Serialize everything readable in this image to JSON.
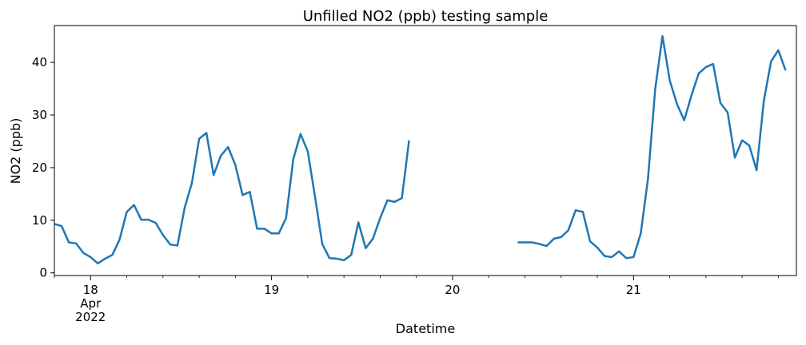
{
  "chart_data": {
    "type": "line",
    "title": "Unfilled NO2 (ppb) testing sample",
    "xlabel": "Datetime",
    "ylabel": "NO2 (ppb)",
    "x_unit": "hours",
    "xlim": [
      -2,
      39
    ],
    "ylim": [
      -0.5,
      47
    ],
    "grid": false,
    "line_color": "#1f77b4",
    "yticks": [
      0,
      10,
      20,
      30,
      40
    ],
    "xticks": [
      {
        "x": 0,
        "label": "18",
        "label2": "Apr",
        "label3": "2022"
      },
      {
        "x": 10,
        "label": "19"
      },
      {
        "x": 20,
        "label": "20"
      },
      {
        "x": 30,
        "label": "21"
      }
    ],
    "series": [
      {
        "values": [
          [
            -2.0,
            9.3
          ],
          [
            -1.6,
            8.9
          ],
          [
            -1.2,
            5.8
          ],
          [
            -0.8,
            5.6
          ],
          [
            -0.4,
            3.8
          ],
          [
            0.0,
            3.0
          ],
          [
            0.4,
            1.8
          ],
          [
            0.8,
            2.7
          ],
          [
            1.2,
            3.4
          ],
          [
            1.6,
            6.3
          ],
          [
            2.0,
            11.6
          ],
          [
            2.4,
            12.9
          ],
          [
            2.8,
            10.1
          ],
          [
            3.2,
            10.1
          ],
          [
            3.6,
            9.5
          ],
          [
            4.0,
            7.2
          ],
          [
            4.4,
            5.4
          ],
          [
            4.8,
            5.2
          ],
          [
            5.2,
            12.4
          ],
          [
            5.6,
            17.1
          ],
          [
            6.0,
            25.5
          ],
          [
            6.4,
            26.6
          ],
          [
            6.8,
            18.6
          ],
          [
            7.2,
            22.3
          ],
          [
            7.6,
            23.9
          ],
          [
            8.0,
            20.5
          ],
          [
            8.4,
            14.8
          ],
          [
            8.8,
            15.4
          ],
          [
            9.2,
            8.4
          ],
          [
            9.6,
            8.4
          ],
          [
            10.0,
            7.5
          ],
          [
            10.4,
            7.5
          ],
          [
            10.8,
            10.4
          ],
          [
            11.2,
            21.6
          ],
          [
            11.6,
            26.4
          ],
          [
            12.0,
            23.1
          ],
          [
            12.4,
            14.5
          ],
          [
            12.8,
            5.5
          ],
          [
            13.2,
            2.8
          ],
          [
            13.6,
            2.7
          ],
          [
            14.0,
            2.4
          ],
          [
            14.4,
            3.4
          ],
          [
            14.8,
            9.6
          ],
          [
            15.2,
            4.7
          ],
          [
            15.6,
            6.5
          ],
          [
            16.0,
            10.4
          ],
          [
            16.4,
            13.8
          ],
          [
            16.8,
            13.5
          ],
          [
            17.2,
            14.2
          ],
          [
            17.6,
            25.2
          ],
          null,
          [
            23.6,
            5.8
          ],
          [
            24.0,
            5.8
          ],
          [
            24.4,
            5.8
          ],
          [
            24.8,
            5.5
          ],
          [
            25.2,
            5.1
          ],
          [
            25.6,
            6.5
          ],
          [
            26.0,
            6.8
          ],
          [
            26.4,
            8.1
          ],
          [
            26.8,
            11.9
          ],
          [
            27.2,
            11.6
          ],
          [
            27.6,
            6.0
          ],
          [
            28.0,
            4.8
          ],
          [
            28.4,
            3.2
          ],
          [
            28.8,
            3.0
          ],
          [
            29.2,
            4.1
          ],
          [
            29.6,
            2.8
          ],
          [
            30.0,
            3.0
          ],
          [
            30.4,
            7.5
          ],
          [
            30.8,
            17.9
          ],
          [
            31.2,
            35.0
          ],
          [
            31.6,
            45.0
          ],
          [
            32.0,
            36.6
          ],
          [
            32.4,
            32.1
          ],
          [
            32.8,
            29.0
          ],
          [
            33.2,
            33.7
          ],
          [
            33.6,
            37.9
          ],
          [
            34.0,
            39.1
          ],
          [
            34.4,
            39.7
          ],
          [
            34.8,
            32.3
          ],
          [
            35.2,
            30.5
          ],
          [
            35.6,
            21.9
          ],
          [
            36.0,
            25.2
          ],
          [
            36.4,
            24.2
          ],
          [
            36.8,
            19.5
          ],
          [
            37.2,
            32.7
          ],
          [
            37.6,
            40.2
          ],
          [
            38.0,
            42.3
          ],
          [
            38.4,
            38.5
          ]
        ]
      }
    ]
  }
}
